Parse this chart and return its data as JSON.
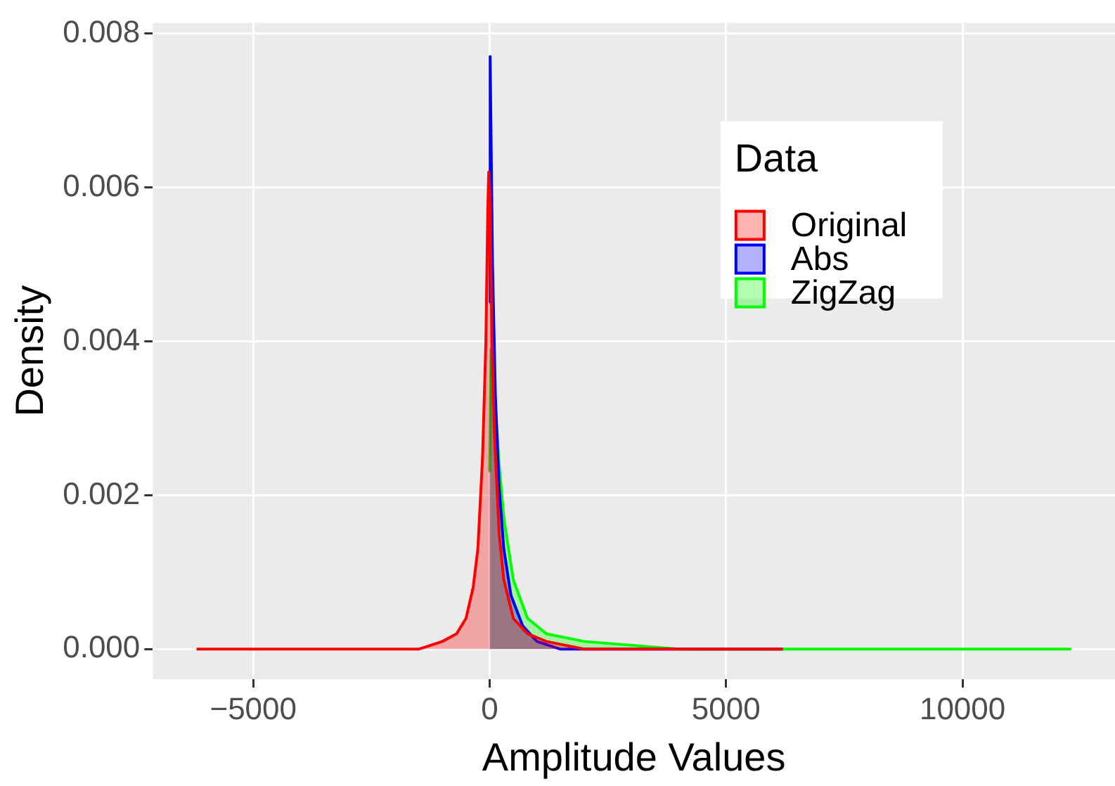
{
  "chart_data": {
    "type": "area",
    "xlabel": "Amplitude Values",
    "ylabel": "Density",
    "legend_title": "Data",
    "legend": "top right",
    "grid": true,
    "xlim": [
      -7125,
      13225
    ],
    "xticks": [
      -5000,
      0,
      5000,
      10000
    ],
    "ylim": [
      -0.00039,
      0.00814
    ],
    "yticks": [
      {
        "value": 0,
        "label": "0.000"
      },
      {
        "value": 0.002,
        "label": "0.002"
      },
      {
        "value": 0.004,
        "label": "0.004"
      },
      {
        "value": 0.006,
        "label": "0.006"
      },
      {
        "value": 0.008,
        "label": "0.008"
      }
    ],
    "series": [
      {
        "name": "Original",
        "color": "#ff0000",
        "x": [
          -6200,
          -3000,
          -1500,
          -1000,
          -700,
          -500,
          -350,
          -250,
          -150,
          -80,
          -40,
          -20,
          0,
          50,
          100,
          200,
          300,
          500,
          800,
          1200,
          2000,
          4000,
          6200
        ],
        "values": [
          0,
          0,
          0,
          0.0001,
          0.0002,
          0.0004,
          0.0008,
          0.0013,
          0.0025,
          0.004,
          0.0057,
          0.0062,
          0.006,
          0.004,
          0.0028,
          0.0015,
          0.0009,
          0.0004,
          0.0002,
          0.0001,
          0,
          0,
          0
        ]
      },
      {
        "name": "Abs",
        "color": "#0000ff",
        "x": [
          0,
          10,
          60,
          120,
          200,
          300,
          450,
          700,
          1000,
          1500,
          3000,
          6200
        ],
        "values": [
          0.0045,
          0.0077,
          0.005,
          0.0033,
          0.0021,
          0.0013,
          0.0007,
          0.0003,
          0.0001,
          0,
          0,
          0
        ]
      },
      {
        "name": "ZigZag",
        "color": "#00ff00",
        "x": [
          0,
          30,
          100,
          200,
          300,
          500,
          800,
          1200,
          2000,
          4000,
          8000,
          12300
        ],
        "values": [
          0.0023,
          0.0039,
          0.0033,
          0.0024,
          0.0017,
          0.0009,
          0.0004,
          0.0002,
          0.0001,
          0,
          0,
          0
        ]
      }
    ]
  }
}
